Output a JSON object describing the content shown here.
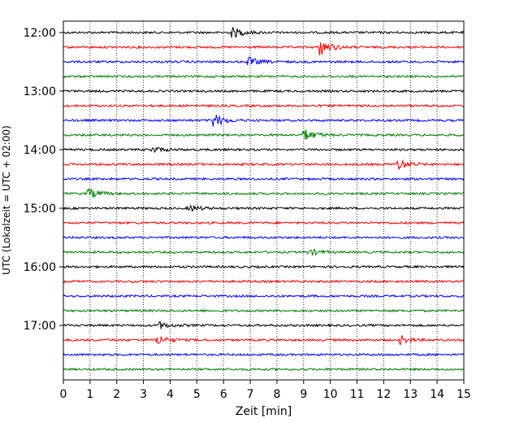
{
  "chart_data": {
    "type": "line",
    "subtype": "seismic helicorder",
    "xlabel": "Zeit  [min]",
    "ylabel": "UTC (Lokalzeit = UTC + 02:00)",
    "xlim": [
      0,
      15
    ],
    "x_ticks": [
      0,
      1,
      2,
      3,
      4,
      5,
      6,
      7,
      8,
      9,
      10,
      11,
      12,
      13,
      14,
      15
    ],
    "x_tick_labels": [
      "0",
      "1",
      "2",
      "3",
      "4",
      "5",
      "6",
      "7",
      "8",
      "9",
      "10",
      "11",
      "12",
      "13",
      "14",
      "15"
    ],
    "y_tick_labels": [
      "12:00",
      "13:00",
      "14:00",
      "15:00",
      "16:00",
      "17:00"
    ],
    "y_tick_trace_index": [
      0,
      4,
      8,
      12,
      16,
      20
    ],
    "grid": "vertical dotted",
    "trace_colors": [
      "#000000",
      "#ff0000",
      "#0000ff",
      "#008000"
    ],
    "traces": [
      {
        "start": "12:00",
        "events": [
          {
            "minute": 6.3,
            "amplitude": 7
          }
        ]
      },
      {
        "start": "12:15",
        "events": [
          {
            "minute": 9.6,
            "amplitude": 11
          }
        ]
      },
      {
        "start": "12:30",
        "events": [
          {
            "minute": 6.9,
            "amplitude": 6
          }
        ]
      },
      {
        "start": "12:45",
        "events": []
      },
      {
        "start": "13:00",
        "events": []
      },
      {
        "start": "13:15",
        "events": []
      },
      {
        "start": "13:30",
        "events": [
          {
            "minute": 5.6,
            "amplitude": 9
          }
        ]
      },
      {
        "start": "13:45",
        "events": [
          {
            "minute": 9.0,
            "amplitude": 8
          }
        ]
      },
      {
        "start": "14:00",
        "events": [
          {
            "minute": 3.3,
            "amplitude": 4
          }
        ]
      },
      {
        "start": "14:15",
        "events": [
          {
            "minute": 12.5,
            "amplitude": 7
          }
        ]
      },
      {
        "start": "14:30",
        "events": []
      },
      {
        "start": "14:45",
        "events": [
          {
            "minute": 0.9,
            "amplitude": 7
          }
        ]
      },
      {
        "start": "15:00",
        "events": [
          {
            "minute": 4.7,
            "amplitude": 4
          }
        ]
      },
      {
        "start": "15:15",
        "events": []
      },
      {
        "start": "15:30",
        "events": []
      },
      {
        "start": "15:45",
        "events": [
          {
            "minute": 9.2,
            "amplitude": 4
          }
        ]
      },
      {
        "start": "16:00",
        "events": []
      },
      {
        "start": "16:15",
        "events": []
      },
      {
        "start": "16:30",
        "events": []
      },
      {
        "start": "16:45",
        "events": []
      },
      {
        "start": "17:00",
        "events": [
          {
            "minute": 3.6,
            "amplitude": 4
          }
        ]
      },
      {
        "start": "17:15",
        "events": [
          {
            "minute": 3.5,
            "amplitude": 6
          },
          {
            "minute": 12.6,
            "amplitude": 5
          }
        ]
      },
      {
        "start": "17:30",
        "events": []
      },
      {
        "start": "17:45",
        "events": []
      }
    ]
  }
}
